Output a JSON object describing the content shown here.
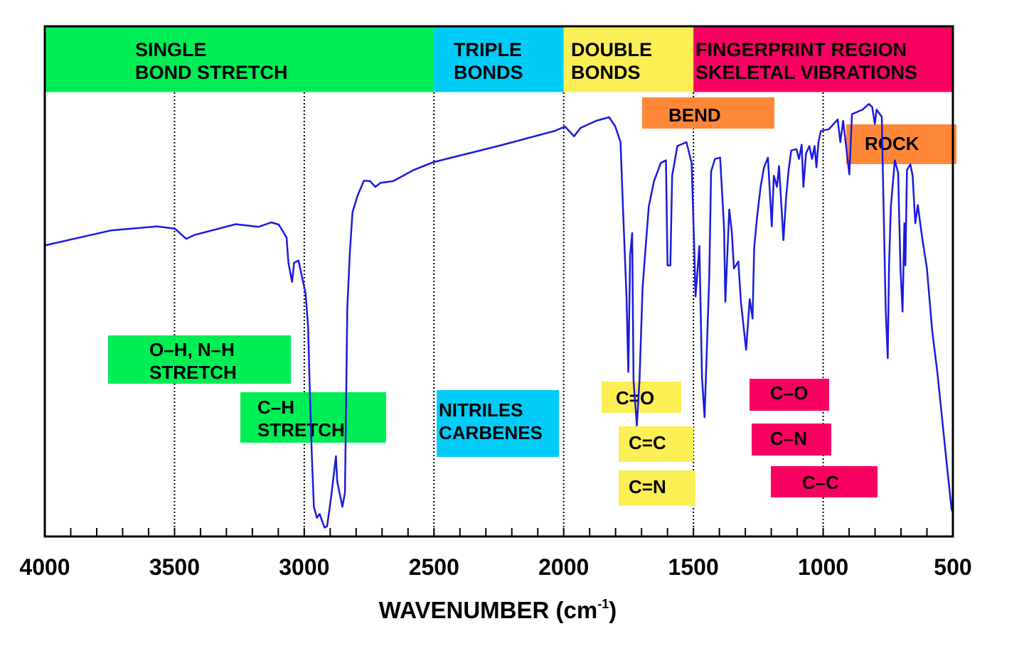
{
  "chart_data": {
    "type": "line",
    "title": "",
    "xlabel": "WAVENUMBER (cm",
    "xlabel_sup": "-1",
    "xlabel_close": ")",
    "ylabel": "",
    "xlim": [
      4000,
      500
    ],
    "x_reversed": true,
    "ylim": [
      0,
      115
    ],
    "y_axis_labels_shown": false,
    "x_ticks_major": [
      4000,
      3500,
      3000,
      2500,
      2000,
      1500,
      1000,
      500
    ],
    "x_tick_labels": [
      "4000",
      "3500",
      "3000",
      "2500",
      "2000",
      "1500",
      "1000",
      "500"
    ],
    "x_ticks_minor_step": 100,
    "grid": "vertical dotted lines at 3500, 3000, 2500, 2000, 1500, 1000",
    "line_color": "#1a1adc",
    "series": [
      {
        "x": [
          4000,
          3744,
          3568,
          3499,
          3455,
          3421,
          3264,
          3176,
          3127,
          3098,
          3068,
          3061,
          3047,
          3039,
          3022,
          3010,
          2995,
          2985,
          2980,
          2971,
          2963,
          2951,
          2941,
          2922,
          2912,
          2897,
          2888,
          2878,
          2873,
          2853,
          2843,
          2834,
          2824,
          2814,
          2794,
          2770,
          2746,
          2726,
          2706,
          2657,
          2579,
          2501,
          2254,
          2035,
          1995,
          1960,
          1935,
          1875,
          1825,
          1801,
          1781,
          1771,
          1758,
          1751,
          1744,
          1736,
          1731,
          1718,
          1708,
          1696,
          1686,
          1672,
          1652,
          1626,
          1606,
          1600,
          1589,
          1582,
          1562,
          1527,
          1507,
          1497,
          1492,
          1477,
          1467,
          1457,
          1439,
          1432,
          1417,
          1397,
          1382,
          1377,
          1362,
          1352,
          1344,
          1327,
          1317,
          1297,
          1283,
          1272,
          1266,
          1255,
          1241,
          1228,
          1213,
          1198,
          1190,
          1178,
          1170,
          1153,
          1143,
          1133,
          1123,
          1103,
          1093,
          1083,
          1076,
          1066,
          1053,
          1043,
          1033,
          1026,
          1018,
          1009,
          978,
          944,
          934,
          923,
          899,
          889,
          849,
          824,
          811,
          801,
          794,
          774,
          767,
          759,
          751,
          746,
          739,
          724,
          711,
          702,
          694,
          687,
          683,
          677,
          664,
          655,
          645,
          635,
          620,
          600,
          580,
          560,
          540,
          520,
          505,
          500
        ],
        "y": [
          65.6,
          69.0,
          69.9,
          69.4,
          67.1,
          68.0,
          70.4,
          69.8,
          70.8,
          70.3,
          67.4,
          61.7,
          57.4,
          61.7,
          62.2,
          58.9,
          54.8,
          47.2,
          35.5,
          18.7,
          6.7,
          4.2,
          5.1,
          2.0,
          2.3,
          8.6,
          13.0,
          18.1,
          12.4,
          6.7,
          9.9,
          51.6,
          64.3,
          73.1,
          76.9,
          80.2,
          80.1,
          78.8,
          79.7,
          80.1,
          82.6,
          84.4,
          88.0,
          91.4,
          92.4,
          90.2,
          92.1,
          93.7,
          94.5,
          92.4,
          88.9,
          73.1,
          54.1,
          37.1,
          63.3,
          68.4,
          35.2,
          25.0,
          35.2,
          56.0,
          63.9,
          74.4,
          80.1,
          84.2,
          84.8,
          61.1,
          61.1,
          81.3,
          88.0,
          88.9,
          84.2,
          65.5,
          54.1,
          65.5,
          35.8,
          26.9,
          58.6,
          82.3,
          85.1,
          85.4,
          69.6,
          52.9,
          73.7,
          68.7,
          60.4,
          62.0,
          52.9,
          42.1,
          53.5,
          49.1,
          64.9,
          71.8,
          78.8,
          83.2,
          85.4,
          69.9,
          81.3,
          78.8,
          83.5,
          66.8,
          76.3,
          82.6,
          87.0,
          87.3,
          85.1,
          88.3,
          78.8,
          86.4,
          88.0,
          85.1,
          88.0,
          83.2,
          88.9,
          91.4,
          91.8,
          94.0,
          88.9,
          93.7,
          81.6,
          95.2,
          96.2,
          97.5,
          96.8,
          93.0,
          96.2,
          94.6,
          73.7,
          51.3,
          40.2,
          61.1,
          74.4,
          84.8,
          82.0,
          60.4,
          50.7,
          70.6,
          61.1,
          82.6,
          83.9,
          81.3,
          70.6,
          74.7,
          68.0,
          60.4,
          46.5,
          37.1,
          25.7,
          14.3,
          6.1,
          5.5
        ]
      }
    ],
    "region_bands": [
      {
        "lines": [
          "SINGLE",
          "BOND STRETCH"
        ],
        "color": "#00ee55",
        "range": [
          4000,
          2500
        ]
      },
      {
        "lines": [
          "TRIPLE",
          "BONDS"
        ],
        "color": "#00ccf8",
        "range": [
          2500,
          2000
        ]
      },
      {
        "lines": [
          "DOUBLE",
          "BONDS"
        ],
        "color": "#fcef55",
        "range": [
          2000,
          1500
        ]
      },
      {
        "lines": [
          "FINGERPRINT REGION",
          "SKELETAL VIBRATIONS"
        ],
        "color": "#fa0062",
        "range": [
          1500,
          500
        ]
      }
    ],
    "annotations": [
      {
        "lines": [
          "BEND"
        ],
        "color": "#ff8838"
      },
      {
        "lines": [
          "ROCK"
        ],
        "color": "#ff8838"
      },
      {
        "lines": [
          "O–H, N–H",
          "STRETCH"
        ],
        "color": "#00ee55"
      },
      {
        "lines": [
          "C–H",
          "STRETCH"
        ],
        "color": "#00ee55"
      },
      {
        "lines": [
          "NITRILES",
          "CARBENES"
        ],
        "color": "#00ccf8"
      },
      {
        "lines": [
          "C=O"
        ],
        "color": "#fcef55"
      },
      {
        "lines": [
          "C=C"
        ],
        "color": "#fcef55"
      },
      {
        "lines": [
          "C=N"
        ],
        "color": "#fcef55"
      },
      {
        "lines": [
          "C–O"
        ],
        "color": "#fa0062"
      },
      {
        "lines": [
          "C–N"
        ],
        "color": "#fa0062"
      },
      {
        "lines": [
          "C–C"
        ],
        "color": "#fa0062"
      }
    ]
  }
}
